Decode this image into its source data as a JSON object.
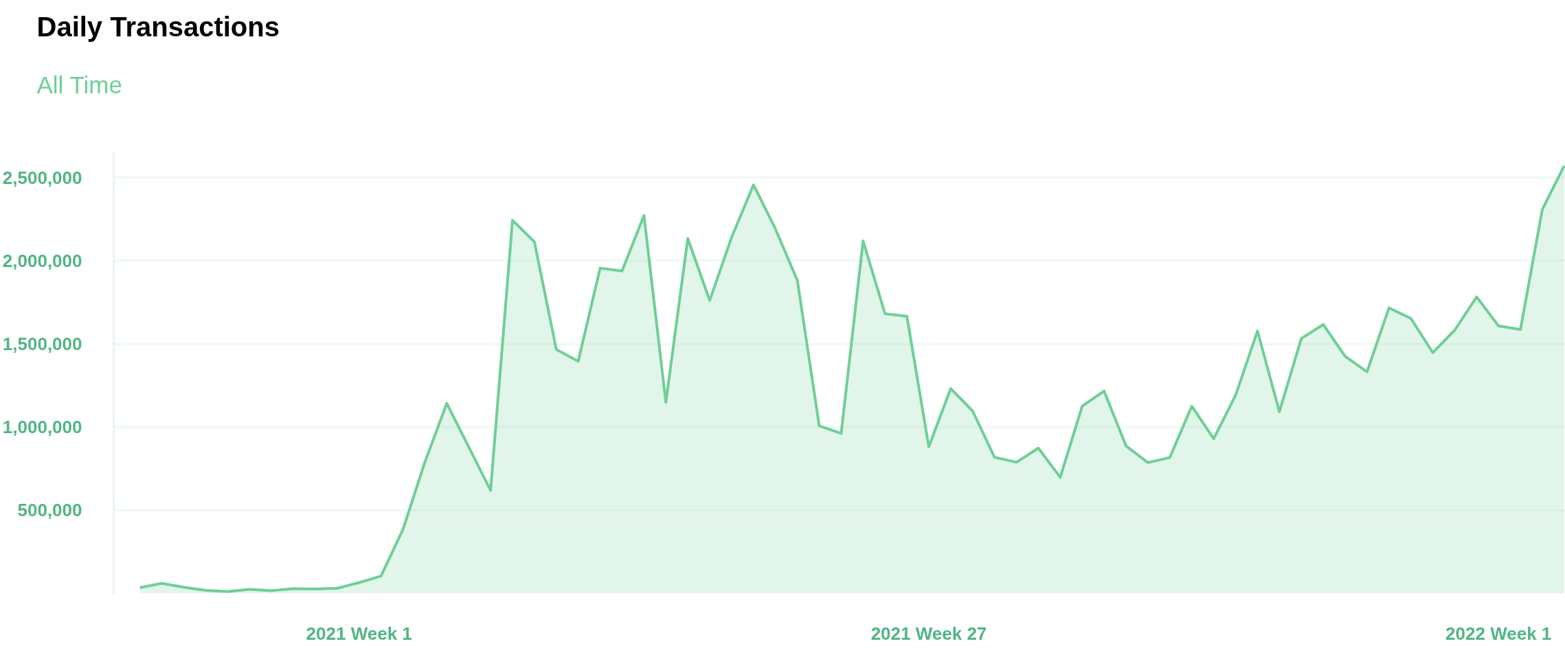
{
  "chart_data": {
    "type": "area",
    "title": "Daily Transactions",
    "subtitle": "All Time",
    "categories": [
      null,
      null,
      null,
      null,
      null,
      null,
      null,
      null,
      null,
      null,
      "2021 Week 1",
      null,
      null,
      null,
      null,
      null,
      null,
      null,
      null,
      null,
      null,
      null,
      null,
      null,
      null,
      null,
      null,
      null,
      null,
      null,
      null,
      null,
      null,
      null,
      null,
      null,
      "2021 Week 27",
      null,
      null,
      null,
      null,
      null,
      null,
      null,
      null,
      null,
      null,
      null,
      null,
      null,
      null,
      null,
      null,
      null,
      null,
      null,
      null,
      null,
      null,
      null,
      null,
      null,
      "2022 Week 1",
      null,
      null,
      null
    ],
    "series": [
      {
        "color": "#6fcf97",
        "values": [
          35000,
          61000,
          37000,
          19000,
          11000,
          25000,
          17000,
          29000,
          27000,
          31000,
          65000,
          105000,
          384000,
          789000,
          1143000,
          882000,
          620000,
          2244000,
          2114000,
          1467000,
          1396000,
          1956000,
          1939000,
          2272000,
          1149000,
          2135000,
          1762000,
          2141000,
          2457000,
          2192000,
          1882000,
          1008000,
          962000,
          2120000,
          1682000,
          1667000,
          882000,
          1232000,
          1097000,
          819000,
          789000,
          874000,
          698000,
          1126000,
          1217000,
          887000,
          787000,
          817000,
          1126000,
          930000,
          1191000,
          1578000,
          1093000,
          1533000,
          1617000,
          1426000,
          1333000,
          1717000,
          1654000,
          1448000,
          1583000,
          1783000,
          1609000,
          1587000,
          2309000,
          2572000
        ]
      }
    ],
    "ylim": [
      0,
      2650000
    ],
    "yticks": [
      {
        "value": 500000,
        "label": "500,000"
      },
      {
        "value": 1000000,
        "label": "1,000,000"
      },
      {
        "value": 1500000,
        "label": "1,500,000"
      },
      {
        "value": 2000000,
        "label": "2,000,000"
      },
      {
        "value": 2500000,
        "label": "2,500,000"
      }
    ],
    "grid": "y"
  }
}
